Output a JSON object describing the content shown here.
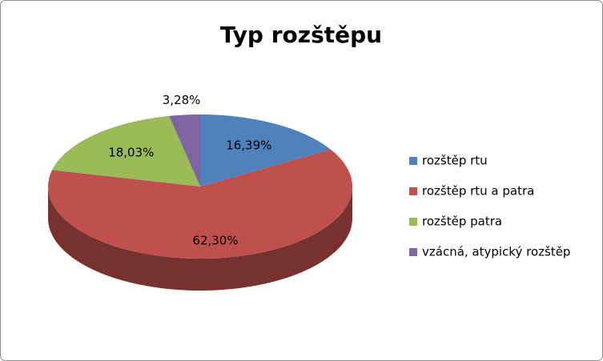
{
  "chart_data": {
    "type": "pie",
    "title": "Typ rozštěpu",
    "categories": [
      "rozštěp rtu",
      "rozštěp rtu a patra",
      "rozštěp patra",
      "vzácná, atypický rozštěp"
    ],
    "values": [
      16.39,
      62.3,
      18.03,
      3.28
    ],
    "value_labels": [
      "16,39%",
      "62,30%",
      "18,03%",
      "3,28%"
    ],
    "colors": [
      "#4f81bd",
      "#c0504d",
      "#9bbb59",
      "#8064a2"
    ],
    "legend": "right"
  }
}
